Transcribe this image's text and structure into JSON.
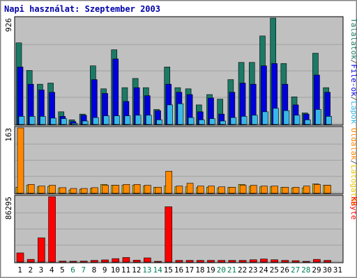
{
  "chart_data": [
    {
      "type": "bar",
      "title": "Napi használat: Szeptember 2003",
      "panel": "top",
      "ymax_label": "926",
      "ylim": [
        0,
        926
      ],
      "legend": [
        {
          "text": "Találatok",
          "color": "#1b7a66"
        },
        {
          "text": "/",
          "color": "#555555"
        },
        {
          "text": "File-ok",
          "color": "#0000dd"
        },
        {
          "text": "/",
          "color": "#555555"
        },
        {
          "text": "Lapok",
          "color": "#38b8e8"
        }
      ],
      "categories": [
        "1",
        "2",
        "3",
        "4",
        "5",
        "6",
        "7",
        "8",
        "9",
        "10",
        "11",
        "12",
        "13",
        "14",
        "15",
        "16",
        "17",
        "18",
        "19",
        "20",
        "21",
        "22",
        "23",
        "24",
        "25",
        "26",
        "27",
        "28",
        "29",
        "30",
        "31"
      ],
      "series": [
        {
          "name": "Találatok",
          "color": "#1b7a66",
          "values": [
            710,
            470,
            350,
            360,
            110,
            40,
            90,
            510,
            310,
            650,
            320,
            400,
            320,
            130,
            500,
            320,
            310,
            170,
            260,
            220,
            390,
            540,
            540,
            770,
            926,
            530,
            240,
            100,
            620,
            320,
            0
          ]
        },
        {
          "name": "File-ok",
          "color": "#0000dd",
          "values": [
            500,
            350,
            300,
            280,
            70,
            25,
            80,
            390,
            270,
            570,
            200,
            320,
            250,
            120,
            350,
            280,
            260,
            110,
            230,
            90,
            280,
            360,
            350,
            510,
            530,
            350,
            170,
            90,
            430,
            280,
            0
          ]
        },
        {
          "name": "Lapok",
          "color": "#38b8e8",
          "values": [
            70,
            70,
            70,
            55,
            50,
            10,
            30,
            60,
            75,
            75,
            75,
            80,
            80,
            40,
            170,
            180,
            60,
            40,
            50,
            30,
            60,
            70,
            80,
            110,
            140,
            120,
            80,
            40,
            130,
            70,
            0
          ]
        }
      ]
    },
    {
      "type": "bar",
      "panel": "middle",
      "ymax_label": "163",
      "ylim": [
        0,
        163
      ],
      "legend": [
        {
          "text": "Oldalak",
          "color": "#ff8800"
        },
        {
          "text": "/",
          "color": "#555555"
        },
        {
          "text": "Látogatók",
          "color": "#e8c800"
        }
      ],
      "categories": [
        "1",
        "2",
        "3",
        "4",
        "5",
        "6",
        "7",
        "8",
        "9",
        "10",
        "11",
        "12",
        "13",
        "14",
        "15",
        "16",
        "17",
        "18",
        "19",
        "20",
        "21",
        "22",
        "23",
        "24",
        "25",
        "26",
        "27",
        "28",
        "29",
        "30",
        "31"
      ],
      "series": [
        {
          "name": "Látogatók",
          "color": "#e8c800",
          "values": [
            15,
            20,
            16,
            17,
            13,
            8,
            10,
            12,
            22,
            20,
            20,
            20,
            18,
            15,
            18,
            16,
            16,
            14,
            15,
            13,
            15,
            22,
            17,
            16,
            17,
            15,
            13,
            13,
            23,
            20,
            0
          ]
        },
        {
          "name": "Oldalak",
          "color": "#ff8800",
          "values": [
            163,
            22,
            18,
            20,
            14,
            12,
            12,
            14,
            20,
            20,
            22,
            22,
            20,
            15,
            55,
            18,
            25,
            18,
            18,
            16,
            15,
            20,
            20,
            18,
            18,
            15,
            15,
            18,
            22,
            20,
            0
          ]
        }
      ]
    },
    {
      "type": "bar",
      "panel": "bottom",
      "ymax_label": "86295",
      "ylim": [
        0,
        86295
      ],
      "legend": [
        {
          "text": "KByte",
          "color": "#ff0000"
        }
      ],
      "categories": [
        "1",
        "2",
        "3",
        "4",
        "5",
        "6",
        "7",
        "8",
        "9",
        "10",
        "11",
        "12",
        "13",
        "14",
        "15",
        "16",
        "17",
        "18",
        "19",
        "20",
        "21",
        "22",
        "23",
        "24",
        "25",
        "26",
        "27",
        "28",
        "29",
        "30",
        "31"
      ],
      "series": [
        {
          "name": "KByte",
          "color": "#ff0000",
          "values": [
            12000,
            3500,
            32000,
            86295,
            1200,
            1000,
            1200,
            2200,
            2800,
            4500,
            6000,
            2500,
            5500,
            800,
            73000,
            2200,
            2200,
            2200,
            2200,
            2200,
            2200,
            2200,
            3000,
            4000,
            3000,
            2200,
            1800,
            800,
            3500,
            2200,
            0
          ]
        }
      ]
    }
  ],
  "day_colors": {
    "weekday": "#000000",
    "weekend": "#00805a"
  },
  "weekend_days": [
    "6",
    "7",
    "13",
    "14",
    "20",
    "21",
    "27",
    "28"
  ]
}
